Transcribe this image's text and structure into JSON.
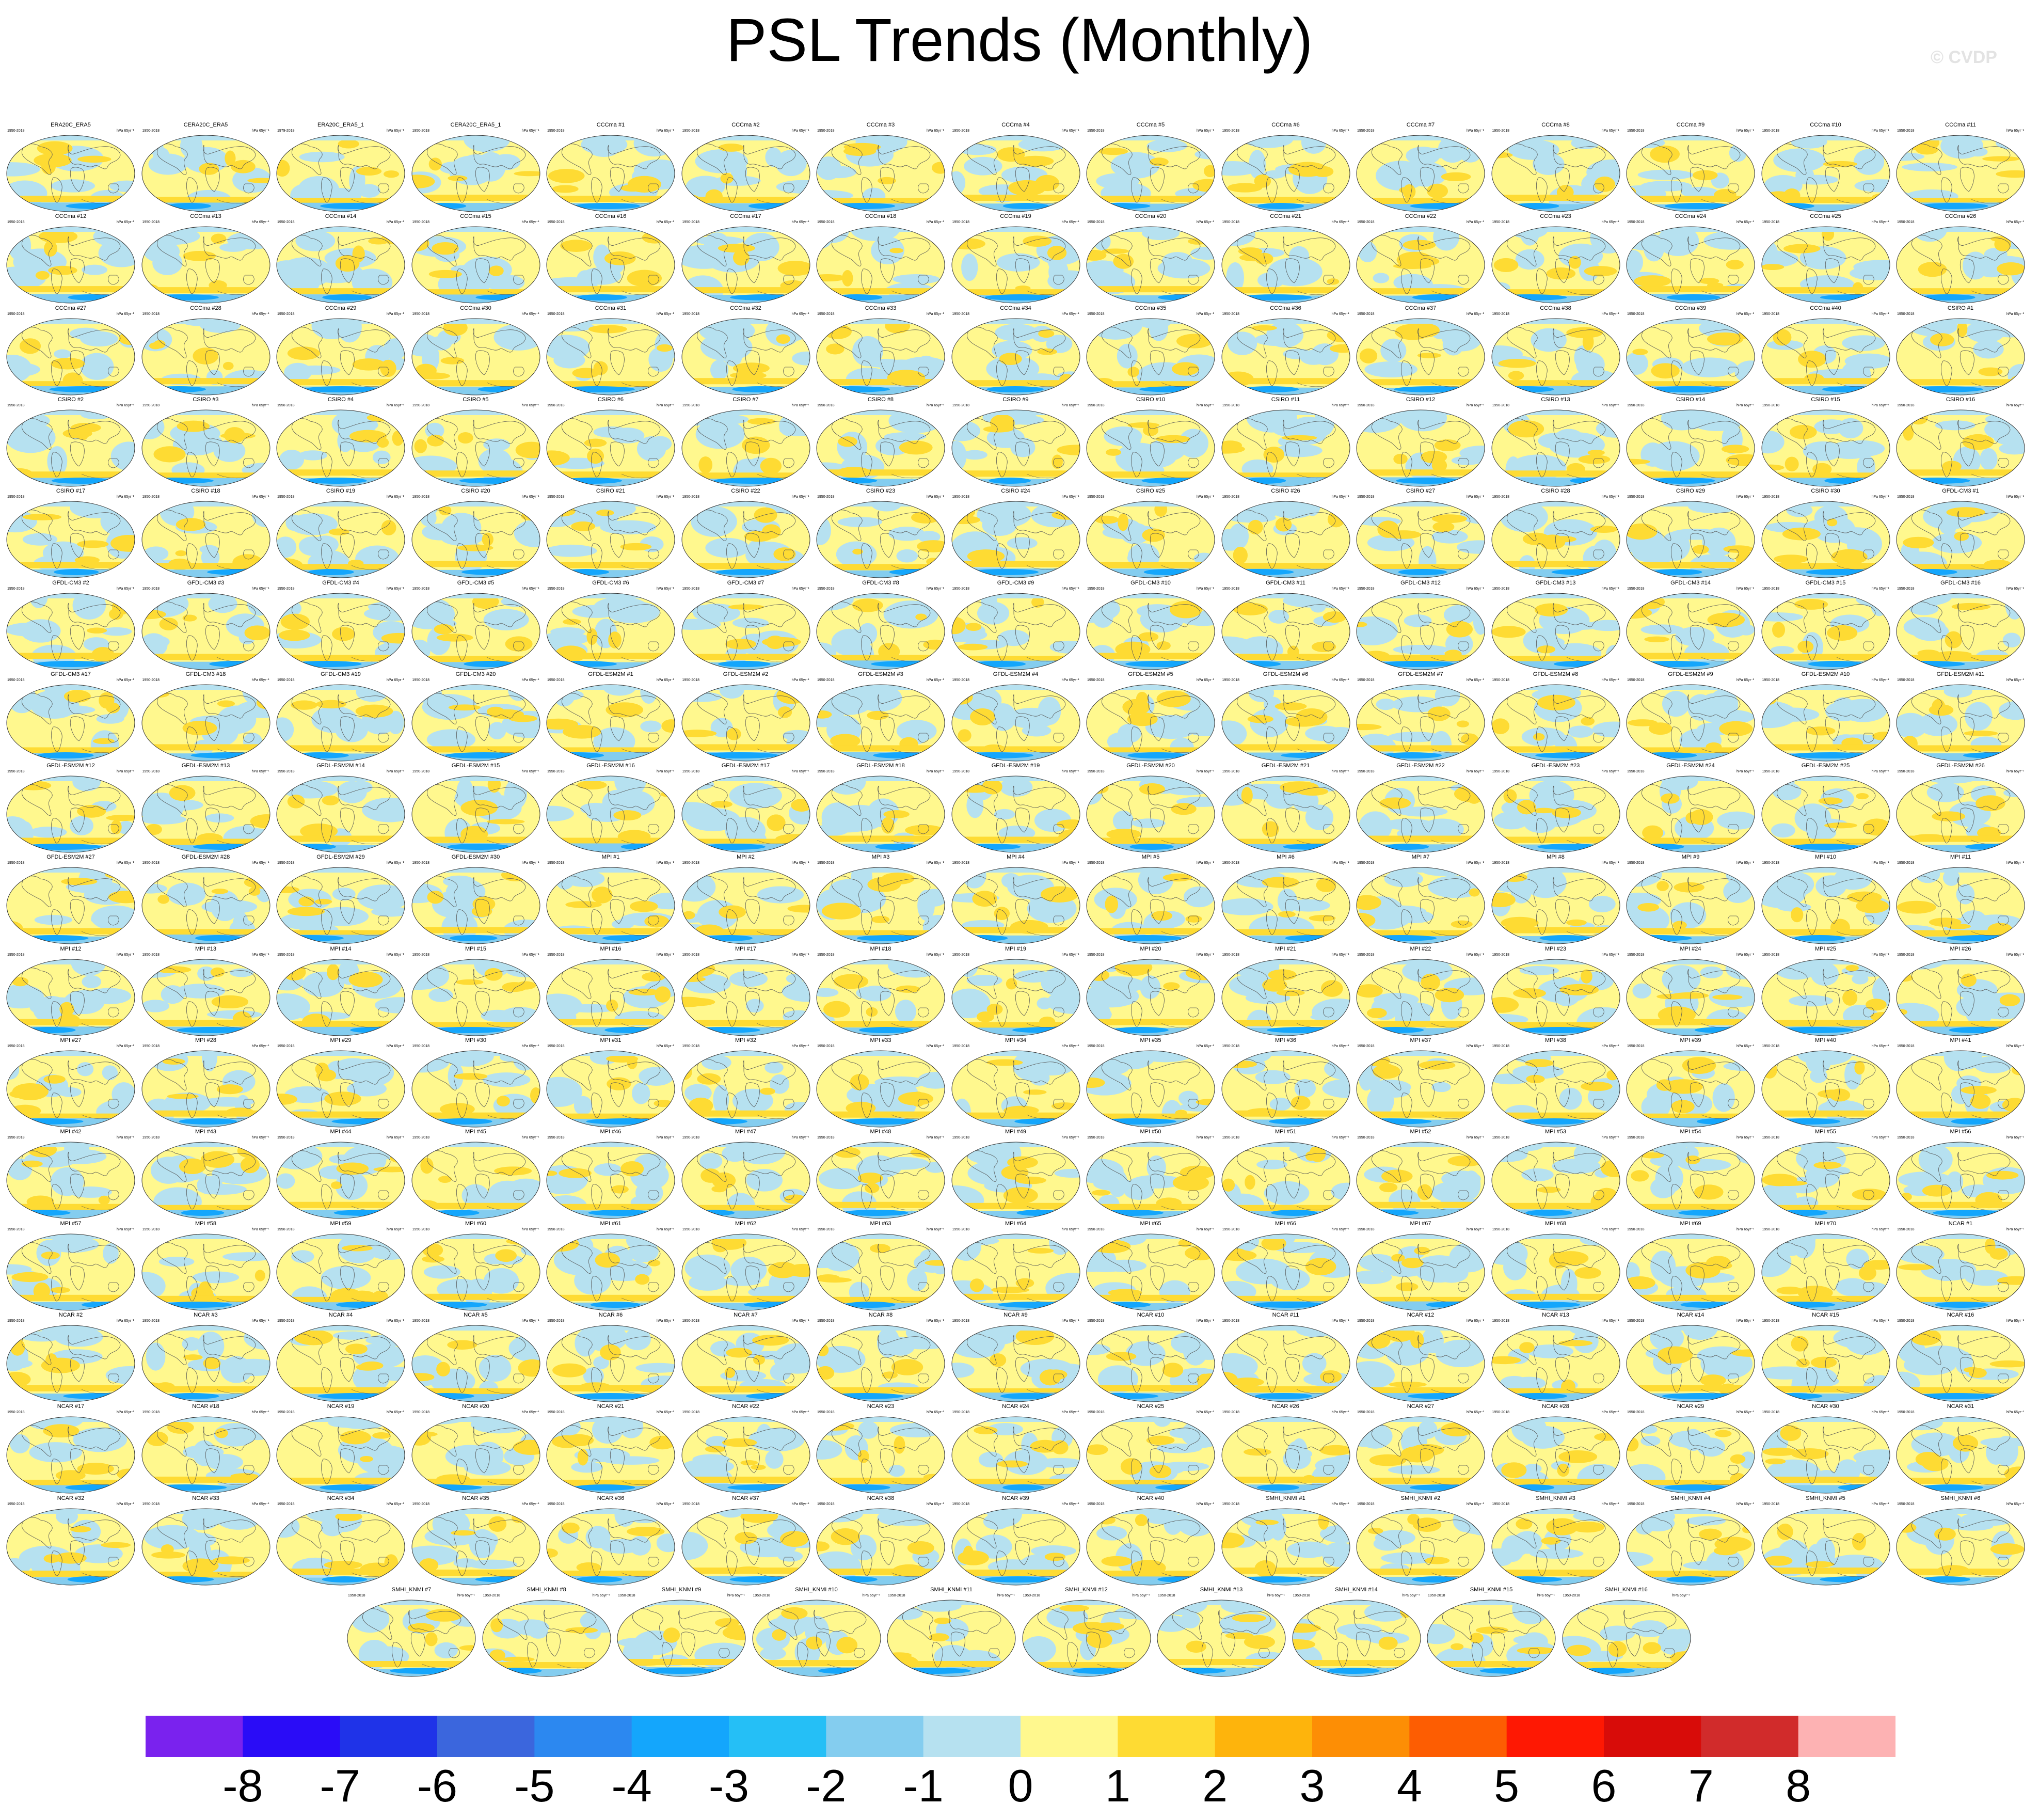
{
  "title": "PSL Trends (Monthly)",
  "watermark": "© CVDP",
  "units": "hPa 65yr⁻¹",
  "chart_data": {
    "type": "map",
    "title": "PSL Trends (Monthly)",
    "colorbar": {
      "ticks": [
        "-8",
        "-7",
        "-6",
        "-5",
        "-4",
        "-3",
        "-2",
        "-1",
        "0",
        "1",
        "2",
        "3",
        "4",
        "5",
        "6",
        "7",
        "8"
      ],
      "colors": [
        "#7a22ee",
        "#2a0cf7",
        "#1f33e8",
        "#3b66dd",
        "#2c88f0",
        "#14a6fc",
        "#25bff6",
        "#84cdef",
        "#b6e1f0",
        "#fff88e",
        "#fedb33",
        "#feb40c",
        "#fd8e05",
        "#fd5d02",
        "#fe1803",
        "#d80c09",
        "#d12b2b",
        "#fdb2b3"
      ]
    },
    "panels": [
      {
        "title": "ERA20C_ERA5",
        "years": "1950-2018"
      },
      {
        "title": "CERA20C_ERA5",
        "years": "1950-2018"
      },
      {
        "title": "ERA20C_ERA5_1",
        "years": "1979-2018"
      },
      {
        "title": "CERA20C_ERA5_1",
        "years": "1950-2018"
      },
      {
        "title": "CCCma #1",
        "years": "1950-2018"
      },
      {
        "title": "CCCma #2",
        "years": "1950-2018"
      },
      {
        "title": "CCCma #3",
        "years": "1950-2018"
      },
      {
        "title": "CCCma #4",
        "years": "1950-2018"
      },
      {
        "title": "CCCma #5",
        "years": "1950-2018"
      },
      {
        "title": "CCCma #6",
        "years": "1950-2018"
      },
      {
        "title": "CCCma #7",
        "years": "1950-2018"
      },
      {
        "title": "CCCma #8",
        "years": "1950-2018"
      },
      {
        "title": "CCCma #9",
        "years": "1950-2018"
      },
      {
        "title": "CCCma #10",
        "years": "1950-2018"
      },
      {
        "title": "CCCma #11",
        "years": "1950-2018"
      },
      {
        "title": "CCCma #12",
        "years": "1950-2018"
      },
      {
        "title": "CCCma #13",
        "years": "1950-2018"
      },
      {
        "title": "CCCma #14",
        "years": "1950-2018"
      },
      {
        "title": "CCCma #15",
        "years": "1950-2018"
      },
      {
        "title": "CCCma #16",
        "years": "1950-2018"
      },
      {
        "title": "CCCma #17",
        "years": "1950-2018"
      },
      {
        "title": "CCCma #18",
        "years": "1950-2018"
      },
      {
        "title": "CCCma #19",
        "years": "1950-2018"
      },
      {
        "title": "CCCma #20",
        "years": "1950-2018"
      },
      {
        "title": "CCCma #21",
        "years": "1950-2018"
      },
      {
        "title": "CCCma #22",
        "years": "1950-2018"
      },
      {
        "title": "CCCma #23",
        "years": "1950-2018"
      },
      {
        "title": "CCCma #24",
        "years": "1950-2018"
      },
      {
        "title": "CCCma #25",
        "years": "1950-2018"
      },
      {
        "title": "CCCma #26",
        "years": "1950-2018"
      },
      {
        "title": "CCCma #27",
        "years": "1950-2018"
      },
      {
        "title": "CCCma #28",
        "years": "1950-2018"
      },
      {
        "title": "CCCma #29",
        "years": "1950-2018"
      },
      {
        "title": "CCCma #30",
        "years": "1950-2018"
      },
      {
        "title": "CCCma #31",
        "years": "1950-2018"
      },
      {
        "title": "CCCma #32",
        "years": "1950-2018"
      },
      {
        "title": "CCCma #33",
        "years": "1950-2018"
      },
      {
        "title": "CCCma #34",
        "years": "1950-2018"
      },
      {
        "title": "CCCma #35",
        "years": "1950-2018"
      },
      {
        "title": "CCCma #36",
        "years": "1950-2018"
      },
      {
        "title": "CCCma #37",
        "years": "1950-2018"
      },
      {
        "title": "CCCma #38",
        "years": "1950-2018"
      },
      {
        "title": "CCCma #39",
        "years": "1950-2018"
      },
      {
        "title": "CCCma #40",
        "years": "1950-2018"
      },
      {
        "title": "CSIRO #1",
        "years": "1950-2018"
      },
      {
        "title": "CSIRO #2",
        "years": "1950-2018"
      },
      {
        "title": "CSIRO #3",
        "years": "1950-2018"
      },
      {
        "title": "CSIRO #4",
        "years": "1950-2018"
      },
      {
        "title": "CSIRO #5",
        "years": "1950-2018"
      },
      {
        "title": "CSIRO #6",
        "years": "1950-2018"
      },
      {
        "title": "CSIRO #7",
        "years": "1950-2018"
      },
      {
        "title": "CSIRO #8",
        "years": "1950-2018"
      },
      {
        "title": "CSIRO #9",
        "years": "1950-2018"
      },
      {
        "title": "CSIRO #10",
        "years": "1950-2018"
      },
      {
        "title": "CSIRO #11",
        "years": "1950-2018"
      },
      {
        "title": "CSIRO #12",
        "years": "1950-2018"
      },
      {
        "title": "CSIRO #13",
        "years": "1950-2018"
      },
      {
        "title": "CSIRO #14",
        "years": "1950-2018"
      },
      {
        "title": "CSIRO #15",
        "years": "1950-2018"
      },
      {
        "title": "CSIRO #16",
        "years": "1950-2018"
      },
      {
        "title": "CSIRO #17",
        "years": "1950-2018"
      },
      {
        "title": "CSIRO #18",
        "years": "1950-2018"
      },
      {
        "title": "CSIRO #19",
        "years": "1950-2018"
      },
      {
        "title": "CSIRO #20",
        "years": "1950-2018"
      },
      {
        "title": "CSIRO #21",
        "years": "1950-2018"
      },
      {
        "title": "CSIRO #22",
        "years": "1950-2018"
      },
      {
        "title": "CSIRO #23",
        "years": "1950-2018"
      },
      {
        "title": "CSIRO #24",
        "years": "1950-2018"
      },
      {
        "title": "CSIRO #25",
        "years": "1950-2018"
      },
      {
        "title": "CSIRO #26",
        "years": "1950-2018"
      },
      {
        "title": "CSIRO #27",
        "years": "1950-2018"
      },
      {
        "title": "CSIRO #28",
        "years": "1950-2018"
      },
      {
        "title": "CSIRO #29",
        "years": "1950-2018"
      },
      {
        "title": "CSIRO #30",
        "years": "1950-2018"
      },
      {
        "title": "GFDL-CM3 #1",
        "years": "1950-2018"
      },
      {
        "title": "GFDL-CM3 #2",
        "years": "1950-2018"
      },
      {
        "title": "GFDL-CM3 #3",
        "years": "1950-2018"
      },
      {
        "title": "GFDL-CM3 #4",
        "years": "1950-2018"
      },
      {
        "title": "GFDL-CM3 #5",
        "years": "1950-2018"
      },
      {
        "title": "GFDL-CM3 #6",
        "years": "1950-2018"
      },
      {
        "title": "GFDL-CM3 #7",
        "years": "1950-2018"
      },
      {
        "title": "GFDL-CM3 #8",
        "years": "1950-2018"
      },
      {
        "title": "GFDL-CM3 #9",
        "years": "1950-2018"
      },
      {
        "title": "GFDL-CM3 #10",
        "years": "1950-2018"
      },
      {
        "title": "GFDL-CM3 #11",
        "years": "1950-2018"
      },
      {
        "title": "GFDL-CM3 #12",
        "years": "1950-2018"
      },
      {
        "title": "GFDL-CM3 #13",
        "years": "1950-2018"
      },
      {
        "title": "GFDL-CM3 #14",
        "years": "1950-2018"
      },
      {
        "title": "GFDL-CM3 #15",
        "years": "1950-2018"
      },
      {
        "title": "GFDL-CM3 #16",
        "years": "1950-2018"
      },
      {
        "title": "GFDL-CM3 #17",
        "years": "1950-2018"
      },
      {
        "title": "GFDL-CM3 #18",
        "years": "1950-2018"
      },
      {
        "title": "GFDL-CM3 #19",
        "years": "1950-2018"
      },
      {
        "title": "GFDL-CM3 #20",
        "years": "1950-2018"
      },
      {
        "title": "GFDL-ESM2M #1",
        "years": "1950-2018"
      },
      {
        "title": "GFDL-ESM2M #2",
        "years": "1950-2018"
      },
      {
        "title": "GFDL-ESM2M #3",
        "years": "1950-2018"
      },
      {
        "title": "GFDL-ESM2M #4",
        "years": "1950-2018"
      },
      {
        "title": "GFDL-ESM2M #5",
        "years": "1950-2018"
      },
      {
        "title": "GFDL-ESM2M #6",
        "years": "1950-2018"
      },
      {
        "title": "GFDL-ESM2M #7",
        "years": "1950-2018"
      },
      {
        "title": "GFDL-ESM2M #8",
        "years": "1950-2018"
      },
      {
        "title": "GFDL-ESM2M #9",
        "years": "1950-2018"
      },
      {
        "title": "GFDL-ESM2M #10",
        "years": "1950-2018"
      },
      {
        "title": "GFDL-ESM2M #11",
        "years": "1950-2018"
      },
      {
        "title": "GFDL-ESM2M #12",
        "years": "1950-2018"
      },
      {
        "title": "GFDL-ESM2M #13",
        "years": "1950-2018"
      },
      {
        "title": "GFDL-ESM2M #14",
        "years": "1950-2018"
      },
      {
        "title": "GFDL-ESM2M #15",
        "years": "1950-2018"
      },
      {
        "title": "GFDL-ESM2M #16",
        "years": "1950-2018"
      },
      {
        "title": "GFDL-ESM2M #17",
        "years": "1950-2018"
      },
      {
        "title": "GFDL-ESM2M #18",
        "years": "1950-2018"
      },
      {
        "title": "GFDL-ESM2M #19",
        "years": "1950-2018"
      },
      {
        "title": "GFDL-ESM2M #20",
        "years": "1950-2018"
      },
      {
        "title": "GFDL-ESM2M #21",
        "years": "1950-2018"
      },
      {
        "title": "GFDL-ESM2M #22",
        "years": "1950-2018"
      },
      {
        "title": "GFDL-ESM2M #23",
        "years": "1950-2018"
      },
      {
        "title": "GFDL-ESM2M #24",
        "years": "1950-2018"
      },
      {
        "title": "GFDL-ESM2M #25",
        "years": "1950-2018"
      },
      {
        "title": "GFDL-ESM2M #26",
        "years": "1950-2018"
      },
      {
        "title": "GFDL-ESM2M #27",
        "years": "1950-2018"
      },
      {
        "title": "GFDL-ESM2M #28",
        "years": "1950-2018"
      },
      {
        "title": "GFDL-ESM2M #29",
        "years": "1950-2018"
      },
      {
        "title": "GFDL-ESM2M #30",
        "years": "1950-2018"
      },
      {
        "title": "MPI #1",
        "years": "1950-2018"
      },
      {
        "title": "MPI #2",
        "years": "1950-2018"
      },
      {
        "title": "MPI #3",
        "years": "1950-2018"
      },
      {
        "title": "MPI #4",
        "years": "1950-2018"
      },
      {
        "title": "MPI #5",
        "years": "1950-2018"
      },
      {
        "title": "MPI #6",
        "years": "1950-2018"
      },
      {
        "title": "MPI #7",
        "years": "1950-2018"
      },
      {
        "title": "MPI #8",
        "years": "1950-2018"
      },
      {
        "title": "MPI #9",
        "years": "1950-2018"
      },
      {
        "title": "MPI #10",
        "years": "1950-2018"
      },
      {
        "title": "MPI #11",
        "years": "1950-2018"
      },
      {
        "title": "MPI #12",
        "years": "1950-2018"
      },
      {
        "title": "MPI #13",
        "years": "1950-2018"
      },
      {
        "title": "MPI #14",
        "years": "1950-2018"
      },
      {
        "title": "MPI #15",
        "years": "1950-2018"
      },
      {
        "title": "MPI #16",
        "years": "1950-2018"
      },
      {
        "title": "MPI #17",
        "years": "1950-2018"
      },
      {
        "title": "MPI #18",
        "years": "1950-2018"
      },
      {
        "title": "MPI #19",
        "years": "1950-2018"
      },
      {
        "title": "MPI #20",
        "years": "1950-2018"
      },
      {
        "title": "MPI #21",
        "years": "1950-2018"
      },
      {
        "title": "MPI #22",
        "years": "1950-2018"
      },
      {
        "title": "MPI #23",
        "years": "1950-2018"
      },
      {
        "title": "MPI #24",
        "years": "1950-2018"
      },
      {
        "title": "MPI #25",
        "years": "1950-2018"
      },
      {
        "title": "MPI #26",
        "years": "1950-2018"
      },
      {
        "title": "MPI #27",
        "years": "1950-2018"
      },
      {
        "title": "MPI #28",
        "years": "1950-2018"
      },
      {
        "title": "MPI #29",
        "years": "1950-2018"
      },
      {
        "title": "MPI #30",
        "years": "1950-2018"
      },
      {
        "title": "MPI #31",
        "years": "1950-2018"
      },
      {
        "title": "MPI #32",
        "years": "1950-2018"
      },
      {
        "title": "MPI #33",
        "years": "1950-2018"
      },
      {
        "title": "MPI #34",
        "years": "1950-2018"
      },
      {
        "title": "MPI #35",
        "years": "1950-2018"
      },
      {
        "title": "MPI #36",
        "years": "1950-2018"
      },
      {
        "title": "MPI #37",
        "years": "1950-2018"
      },
      {
        "title": "MPI #38",
        "years": "1950-2018"
      },
      {
        "title": "MPI #39",
        "years": "1950-2018"
      },
      {
        "title": "MPI #40",
        "years": "1950-2018"
      },
      {
        "title": "MPI #41",
        "years": "1950-2018"
      },
      {
        "title": "MPI #42",
        "years": "1950-2018"
      },
      {
        "title": "MPI #43",
        "years": "1950-2018"
      },
      {
        "title": "MPI #44",
        "years": "1950-2018"
      },
      {
        "title": "MPI #45",
        "years": "1950-2018"
      },
      {
        "title": "MPI #46",
        "years": "1950-2018"
      },
      {
        "title": "MPI #47",
        "years": "1950-2018"
      },
      {
        "title": "MPI #48",
        "years": "1950-2018"
      },
      {
        "title": "MPI #49",
        "years": "1950-2018"
      },
      {
        "title": "MPI #50",
        "years": "1950-2018"
      },
      {
        "title": "MPI #51",
        "years": "1950-2018"
      },
      {
        "title": "MPI #52",
        "years": "1950-2018"
      },
      {
        "title": "MPI #53",
        "years": "1950-2018"
      },
      {
        "title": "MPI #54",
        "years": "1950-2018"
      },
      {
        "title": "MPI #55",
        "years": "1950-2018"
      },
      {
        "title": "MPI #56",
        "years": "1950-2018"
      },
      {
        "title": "MPI #57",
        "years": "1950-2018"
      },
      {
        "title": "MPI #58",
        "years": "1950-2018"
      },
      {
        "title": "MPI #59",
        "years": "1950-2018"
      },
      {
        "title": "MPI #60",
        "years": "1950-2018"
      },
      {
        "title": "MPI #61",
        "years": "1950-2018"
      },
      {
        "title": "MPI #62",
        "years": "1950-2018"
      },
      {
        "title": "MPI #63",
        "years": "1950-2018"
      },
      {
        "title": "MPI #64",
        "years": "1950-2018"
      },
      {
        "title": "MPI #65",
        "years": "1950-2018"
      },
      {
        "title": "MPI #66",
        "years": "1950-2018"
      },
      {
        "title": "MPI #67",
        "years": "1950-2018"
      },
      {
        "title": "MPI #68",
        "years": "1950-2018"
      },
      {
        "title": "MPI #69",
        "years": "1950-2018"
      },
      {
        "title": "MPI #70",
        "years": "1950-2018"
      },
      {
        "title": "NCAR #1",
        "years": "1950-2018"
      },
      {
        "title": "NCAR #2",
        "years": "1950-2018"
      },
      {
        "title": "NCAR #3",
        "years": "1950-2018"
      },
      {
        "title": "NCAR #4",
        "years": "1950-2018"
      },
      {
        "title": "NCAR #5",
        "years": "1950-2018"
      },
      {
        "title": "NCAR #6",
        "years": "1950-2018"
      },
      {
        "title": "NCAR #7",
        "years": "1950-2018"
      },
      {
        "title": "NCAR #8",
        "years": "1950-2018"
      },
      {
        "title": "NCAR #9",
        "years": "1950-2018"
      },
      {
        "title": "NCAR #10",
        "years": "1950-2018"
      },
      {
        "title": "NCAR #11",
        "years": "1950-2018"
      },
      {
        "title": "NCAR #12",
        "years": "1950-2018"
      },
      {
        "title": "NCAR #13",
        "years": "1950-2018"
      },
      {
        "title": "NCAR #14",
        "years": "1950-2018"
      },
      {
        "title": "NCAR #15",
        "years": "1950-2018"
      },
      {
        "title": "NCAR #16",
        "years": "1950-2018"
      },
      {
        "title": "NCAR #17",
        "years": "1950-2018"
      },
      {
        "title": "NCAR #18",
        "years": "1950-2018"
      },
      {
        "title": "NCAR #19",
        "years": "1950-2018"
      },
      {
        "title": "NCAR #20",
        "years": "1950-2018"
      },
      {
        "title": "NCAR #21",
        "years": "1950-2018"
      },
      {
        "title": "NCAR #22",
        "years": "1950-2018"
      },
      {
        "title": "NCAR #23",
        "years": "1950-2018"
      },
      {
        "title": "NCAR #24",
        "years": "1950-2018"
      },
      {
        "title": "NCAR #25",
        "years": "1950-2018"
      },
      {
        "title": "NCAR #26",
        "years": "1950-2018"
      },
      {
        "title": "NCAR #27",
        "years": "1950-2018"
      },
      {
        "title": "NCAR #28",
        "years": "1950-2018"
      },
      {
        "title": "NCAR #29",
        "years": "1950-2018"
      },
      {
        "title": "NCAR #30",
        "years": "1950-2018"
      },
      {
        "title": "NCAR #31",
        "years": "1950-2018"
      },
      {
        "title": "NCAR #32",
        "years": "1950-2018"
      },
      {
        "title": "NCAR #33",
        "years": "1950-2018"
      },
      {
        "title": "NCAR #34",
        "years": "1950-2018"
      },
      {
        "title": "NCAR #35",
        "years": "1950-2018"
      },
      {
        "title": "NCAR #36",
        "years": "1950-2018"
      },
      {
        "title": "NCAR #37",
        "years": "1950-2018"
      },
      {
        "title": "NCAR #38",
        "years": "1950-2018"
      },
      {
        "title": "NCAR #39",
        "years": "1950-2018"
      },
      {
        "title": "NCAR #40",
        "years": "1950-2018"
      },
      {
        "title": "SMHI_KNMI #1",
        "years": "1950-2018"
      },
      {
        "title": "SMHI_KNMI #2",
        "years": "1950-2018"
      },
      {
        "title": "SMHI_KNMI #3",
        "years": "1950-2018"
      },
      {
        "title": "SMHI_KNMI #4",
        "years": "1950-2018"
      },
      {
        "title": "SMHI_KNMI #5",
        "years": "1950-2018"
      },
      {
        "title": "SMHI_KNMI #6",
        "years": "1950-2018"
      },
      {
        "title": "SMHI_KNMI #7",
        "years": "1950-2018"
      },
      {
        "title": "SMHI_KNMI #8",
        "years": "1950-2018"
      },
      {
        "title": "SMHI_KNMI #9",
        "years": "1950-2018"
      },
      {
        "title": "SMHI_KNMI #10",
        "years": "1950-2018"
      },
      {
        "title": "SMHI_KNMI #11",
        "years": "1950-2018"
      },
      {
        "title": "SMHI_KNMI #12",
        "years": "1950-2018"
      },
      {
        "title": "SMHI_KNMI #13",
        "years": "1950-2018"
      },
      {
        "title": "SMHI_KNMI #14",
        "years": "1950-2018"
      },
      {
        "title": "SMHI_KNMI #15",
        "years": "1950-2018"
      },
      {
        "title": "SMHI_KNMI #16",
        "years": "1950-2018"
      }
    ]
  }
}
